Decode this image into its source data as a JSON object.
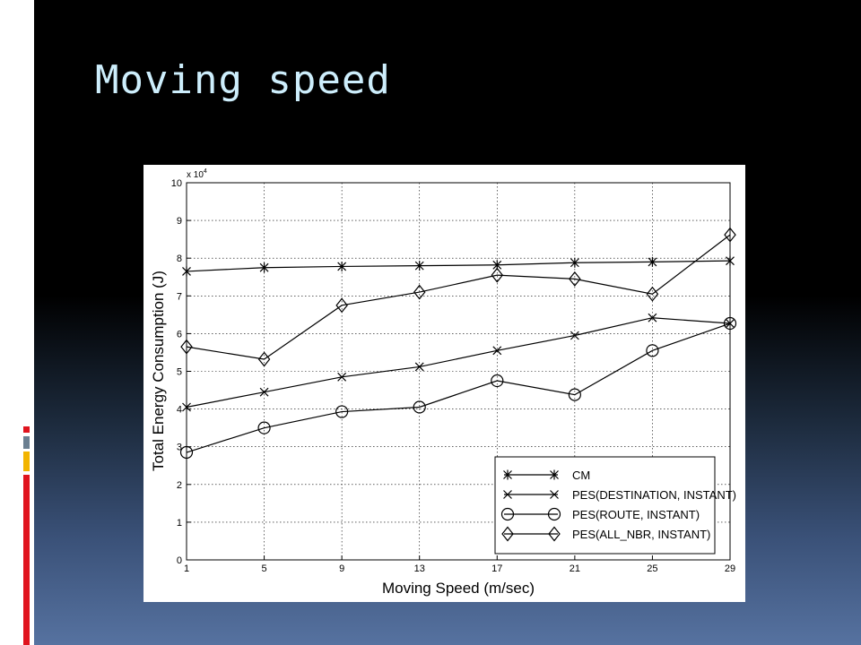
{
  "slide": {
    "title": "Moving speed",
    "colors": {
      "background_top": "#000000",
      "background_bottom": "#5672a0",
      "title": "#cdeefc",
      "accent_red": "#e0141e",
      "accent_gray": "#6b7f91",
      "accent_gold": "#f2b400"
    }
  },
  "chart_data": {
    "type": "line",
    "xlabel": "Moving Speed (m/sec)",
    "ylabel": "Total Energy Consumption (J)",
    "y_multiplier": "x 10",
    "y_multiplier_exp": "4",
    "x": [
      1,
      5,
      9,
      13,
      17,
      21,
      25,
      29
    ],
    "xlim": [
      1,
      29
    ],
    "ylim": [
      0,
      10
    ],
    "x_ticks": [
      1,
      5,
      9,
      13,
      17,
      21,
      25,
      29
    ],
    "y_ticks": [
      0,
      1,
      2,
      3,
      4,
      5,
      6,
      7,
      8,
      9,
      10
    ],
    "grid": true,
    "grid_style": "dotted",
    "legend_position": "bottom-right",
    "series": [
      {
        "name": "CM",
        "marker": "asterisk",
        "values": [
          7.65,
          7.75,
          7.78,
          7.8,
          7.82,
          7.88,
          7.9,
          7.93
        ]
      },
      {
        "name": "PES(DESTINATION, INSTANT)",
        "marker": "x",
        "values": [
          4.05,
          4.45,
          4.85,
          5.12,
          5.55,
          5.95,
          6.42,
          6.27
        ]
      },
      {
        "name": "PES(ROUTE, INSTANT)",
        "marker": "circle",
        "values": [
          2.85,
          3.5,
          3.93,
          4.05,
          4.75,
          4.38,
          5.55,
          6.27
        ]
      },
      {
        "name": "PES(ALL_NBR, INSTANT)",
        "marker": "diamond",
        "values": [
          5.65,
          5.32,
          6.75,
          7.1,
          7.55,
          7.45,
          7.05,
          8.62
        ]
      }
    ]
  }
}
